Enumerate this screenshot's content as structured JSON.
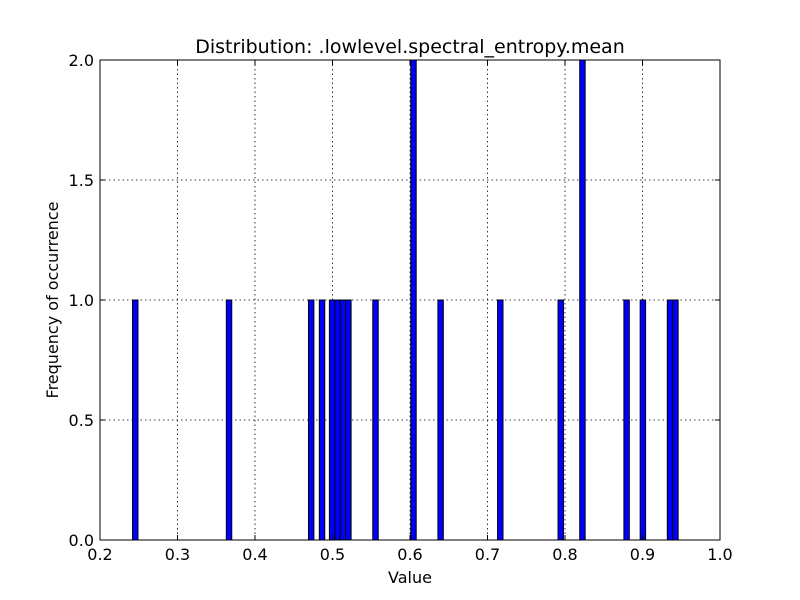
{
  "chart_data": {
    "type": "bar",
    "title": "Distribution: .lowlevel.spectral_entropy.mean",
    "xlabel": "Value",
    "ylabel": "Frequency of occurrence",
    "xlim": [
      0.2,
      1.0
    ],
    "ylim": [
      0.0,
      2.0
    ],
    "xticks": [
      "0.2",
      "0.3",
      "0.4",
      "0.5",
      "0.6",
      "0.7",
      "0.8",
      "0.9",
      "1.0"
    ],
    "yticks": [
      "0.0",
      "0.5",
      "1.0",
      "1.5",
      "2.0"
    ],
    "grid": true,
    "bar_color": "#0000ff",
    "bars": [
      {
        "x": 0.242,
        "width": 0.007,
        "value": 1
      },
      {
        "x": 0.363,
        "width": 0.007,
        "value": 1
      },
      {
        "x": 0.469,
        "width": 0.007,
        "value": 1
      },
      {
        "x": 0.483,
        "width": 0.007,
        "value": 1
      },
      {
        "x": 0.496,
        "width": 0.007,
        "value": 1
      },
      {
        "x": 0.503,
        "width": 0.007,
        "value": 1
      },
      {
        "x": 0.51,
        "width": 0.007,
        "value": 1
      },
      {
        "x": 0.517,
        "width": 0.007,
        "value": 1
      },
      {
        "x": 0.552,
        "width": 0.007,
        "value": 1
      },
      {
        "x": 0.601,
        "width": 0.007,
        "value": 2
      },
      {
        "x": 0.636,
        "width": 0.007,
        "value": 1
      },
      {
        "x": 0.713,
        "width": 0.007,
        "value": 1
      },
      {
        "x": 0.791,
        "width": 0.007,
        "value": 1
      },
      {
        "x": 0.819,
        "width": 0.007,
        "value": 2
      },
      {
        "x": 0.876,
        "width": 0.007,
        "value": 1
      },
      {
        "x": 0.897,
        "width": 0.007,
        "value": 1
      },
      {
        "x": 0.932,
        "width": 0.007,
        "value": 1
      },
      {
        "x": 0.939,
        "width": 0.007,
        "value": 1
      }
    ]
  }
}
